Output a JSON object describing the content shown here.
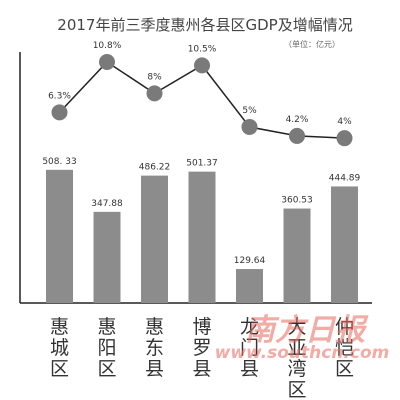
{
  "chart_data": {
    "type": "bar",
    "title": "2017年前三季度惠州各县区GDP及增幅情况",
    "unit_note": "（单位：亿元）",
    "categories": [
      "惠城区",
      "惠阳区",
      "惠东县",
      "博罗县",
      "龙门县",
      "大亚湾区",
      "仲恺区"
    ],
    "category_display": [
      [
        "惠",
        "城",
        "区"
      ],
      [
        "惠",
        "阳",
        "区"
      ],
      [
        "惠",
        "东",
        "县"
      ],
      [
        "博",
        "罗",
        "县"
      ],
      [
        "龙",
        "门",
        "县"
      ],
      [
        "大",
        "亚",
        "湾",
        "区"
      ],
      [
        "仲",
        "恺",
        "区"
      ]
    ],
    "series": [
      {
        "type": "bar",
        "values": [
          508.33,
          347.88,
          486.22,
          501.37,
          129.64,
          360.53,
          444.89
        ],
        "labels": [
          "508. 33",
          "347.88",
          "486.22",
          "501.37",
          "129.64",
          "360.53",
          "444.89"
        ],
        "color": "#8c8c8c"
      },
      {
        "type": "line",
        "values": [
          6.3,
          10.8,
          8,
          10.5,
          5,
          4.2,
          4
        ],
        "labels": [
          "6.3%",
          "10.8%",
          "8%",
          "10.5%",
          "5%",
          "4.2%",
          "4%"
        ],
        "color": "#7a7a7a",
        "line_color": "#222222"
      }
    ],
    "grid": false
  },
  "watermark": {
    "text": "南方日报",
    "url": "www.southcn.com",
    "color": "#e86a5c"
  }
}
